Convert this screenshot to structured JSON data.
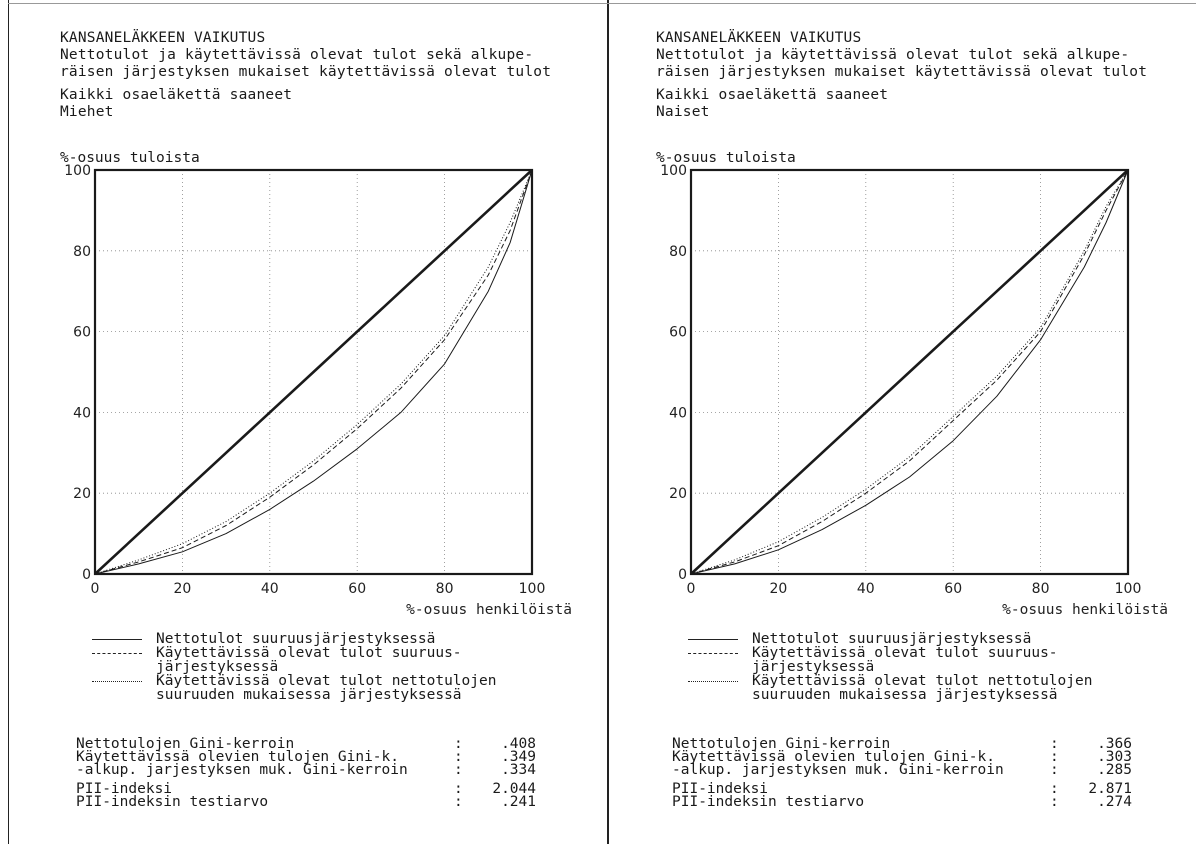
{
  "panels": [
    {
      "header": [
        "KANSANELÄKKEEN VAIKUTUS",
        "Nettotulot ja käytettävissä olevat tulot sekä alkupe-",
        "räisen järjestyksen mukaiset käytettävissä olevat tulot",
        "Kaikki osaeläkettä saaneet",
        "Miehet"
      ],
      "y_axis_label": "%-osuus tuloista",
      "x_axis_label": "%-osuus henkilöistä",
      "legend": [
        "Nettotulot suuruusjärjestyksessä",
        "Käytettävissä olevat tulot suuruus-",
        "järjestyksessä",
        "Käytettävissä olevat tulot nettotulojen",
        "suuruuden mukaisessa järjestyksessä"
      ],
      "stats": [
        {
          "label": "Nettotulojen Gini-kerroin",
          "value": ".408"
        },
        {
          "label": "Käytettävissä olevien tulojen Gini-k.",
          "value": ".349"
        },
        {
          "label": " -alkup. jarjestyksen muk. Gini-kerroin",
          "value": ".334"
        },
        {
          "label": "PII-indeksi",
          "value": "2.044"
        },
        {
          "label": "PII-indeksin testiarvo",
          "value": ".241"
        }
      ],
      "colon": ":"
    },
    {
      "header": [
        "KANSANELÄKKEEN VAIKUTUS",
        "Nettotulot ja käytettävissä olevat tulot sekä alkupe-",
        "räisen järjestyksen mukaiset käytettävissä olevat tulot",
        "Kaikki osaeläkettä saaneet",
        "Naiset"
      ],
      "y_axis_label": "%-osuus tuloista",
      "x_axis_label": "%-osuus henkilöistä",
      "legend": [
        "Nettotulot suuruusjärjestyksessä",
        "Käytettävissä olevat tulot suuruus-",
        "järjestyksessä",
        "Käytettävissä olevat tulot nettotulojen",
        "suuruuden mukaisessa järjestyksessä"
      ],
      "stats": [
        {
          "label": "Nettotulojen Gini-kerroin",
          "value": ".366"
        },
        {
          "label": "Käytettävissä olevien tulojen Gini-k.",
          "value": ".303"
        },
        {
          "label": " -alkup. jarjestyksen muk. Gini-kerroin",
          "value": ".285"
        },
        {
          "label": "PII-indeksi",
          "value": "2.871"
        },
        {
          "label": "PII-indeksin testiarvo",
          "value": ".274"
        }
      ],
      "colon": ":"
    }
  ],
  "chart_data": [
    {
      "type": "line",
      "ylabel": "%-osuus tuloista",
      "xlabel": "%-osuus henkilöistä",
      "xlim": [
        0,
        100
      ],
      "ylim": [
        0,
        100
      ],
      "xticks": [
        0,
        20,
        40,
        60,
        80,
        100
      ],
      "yticks": [
        0,
        20,
        40,
        60,
        80,
        100
      ],
      "grid": true,
      "x": [
        0,
        10,
        20,
        30,
        40,
        50,
        60,
        70,
        80,
        90,
        95,
        100
      ],
      "series": [
        {
          "name": "",
          "style": "solid-thick",
          "values": [
            0,
            10,
            20,
            30,
            40,
            50,
            60,
            70,
            80,
            90,
            95,
            100
          ]
        },
        {
          "name": "Nettotulot suuruusjärjestyksessä",
          "style": "solid",
          "values": [
            0,
            2.5,
            5.5,
            10,
            16,
            23,
            31,
            40,
            52,
            70,
            82,
            100
          ]
        },
        {
          "name": "Käytettävissä olevat tulot suuruusjärjestyksessä",
          "style": "dashed",
          "values": [
            0,
            3,
            6.5,
            12,
            19,
            27,
            36,
            46,
            58,
            74,
            85,
            100
          ]
        },
        {
          "name": "Käytettävissä olevat tulot nettotulojen suuruuden mukaisessa järjestyksessä",
          "style": "dotted",
          "values": [
            0,
            3.5,
            7.5,
            13,
            20,
            28,
            37,
            47,
            59,
            76,
            87,
            100
          ]
        }
      ]
    },
    {
      "type": "line",
      "ylabel": "%-osuus tuloista",
      "xlabel": "%-osuus henkilöistä",
      "xlim": [
        0,
        100
      ],
      "ylim": [
        0,
        100
      ],
      "xticks": [
        0,
        20,
        40,
        60,
        80,
        100
      ],
      "yticks": [
        0,
        20,
        40,
        60,
        80,
        100
      ],
      "grid": true,
      "x": [
        0,
        10,
        20,
        30,
        40,
        50,
        60,
        70,
        80,
        90,
        95,
        100
      ],
      "series": [
        {
          "name": "",
          "style": "solid-thick",
          "values": [
            0,
            10,
            20,
            30,
            40,
            50,
            60,
            70,
            80,
            90,
            95,
            100
          ]
        },
        {
          "name": "Nettotulot suuruusjärjestyksessä",
          "style": "solid",
          "values": [
            0,
            2.5,
            6,
            11,
            17,
            24,
            33,
            44,
            58,
            76,
            87,
            100
          ]
        },
        {
          "name": "Käytettävissä olevat tulot suuruusjärjestyksessä",
          "style": "dashed",
          "values": [
            0,
            3,
            7,
            13,
            20,
            28,
            38,
            48,
            60,
            79,
            90,
            100
          ]
        },
        {
          "name": "Käytettävissä olevat tulot nettotulojen suuruuden mukaisessa järjestyksessä",
          "style": "dotted",
          "values": [
            0,
            3.5,
            8,
            14,
            21,
            29,
            39,
            49,
            61,
            80,
            91,
            100
          ]
        }
      ]
    }
  ]
}
